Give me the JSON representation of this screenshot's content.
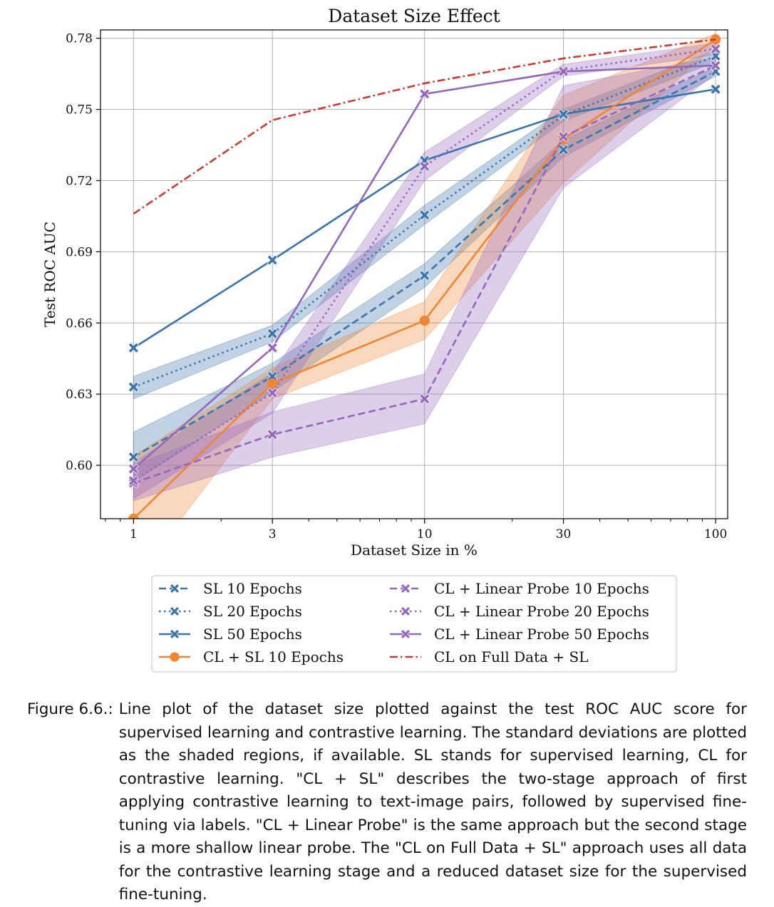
{
  "chart_data": {
    "type": "line",
    "title": "Dataset Size Effect",
    "xlabel": "Dataset Size in %",
    "ylabel": "Test ROC AUC",
    "x": [
      1,
      3,
      10,
      30,
      100
    ],
    "x_scale": "log",
    "xlim": [
      0.77,
      110
    ],
    "ylim": [
      0.5775,
      0.7835
    ],
    "xticks": [
      "1",
      "3",
      "10",
      "30",
      "100"
    ],
    "yticks": [
      "0.60",
      "0.63",
      "0.66",
      "0.69",
      "0.72",
      "0.75",
      "0.78"
    ],
    "ytick_values": [
      0.6,
      0.63,
      0.66,
      0.69,
      0.72,
      0.75,
      0.78
    ],
    "grid": true,
    "legend_position": "below plot, two columns",
    "series": [
      {
        "name": "SL 10 Epochs",
        "color": "#3a74aa",
        "linestyle": "dashed",
        "marker": "x",
        "values": [
          0.6035,
          0.6375,
          0.68,
          0.733,
          0.766
        ],
        "std_low": [
          0.593,
          0.631,
          0.675,
          0.73,
          0.764
        ],
        "std_high": [
          0.614,
          0.643,
          0.685,
          0.737,
          0.768
        ]
      },
      {
        "name": "SL 20 Epochs",
        "color": "#3a74aa",
        "linestyle": "dotted",
        "marker": "x",
        "values": [
          0.633,
          0.6555,
          0.7055,
          0.7475,
          0.7725
        ],
        "std_low": [
          0.628,
          0.652,
          0.7015,
          0.745,
          0.77
        ],
        "std_high": [
          0.6375,
          0.659,
          0.7095,
          0.75,
          0.775
        ]
      },
      {
        "name": "SL 50 Epochs",
        "color": "#3a74aa",
        "linestyle": "solid",
        "marker": "x",
        "values": [
          0.6495,
          0.6865,
          0.7285,
          0.748,
          0.7585
        ]
      },
      {
        "name": "CL + SL 10 Epochs",
        "color": "#ef8636",
        "linestyle": "solid",
        "marker": "o",
        "values": [
          0.5775,
          0.6345,
          0.661,
          0.7375,
          0.7795
        ],
        "std_low": [
          0.551,
          0.628,
          0.653,
          0.719,
          0.777
        ],
        "std_high": [
          0.604,
          0.641,
          0.669,
          0.756,
          0.782
        ]
      },
      {
        "name": "CL + Linear Probe 10 Epochs",
        "color": "#9467bd",
        "linestyle": "dashed",
        "marker": "x",
        "values": [
          0.5925,
          0.613,
          0.628,
          0.7385,
          0.7685
        ],
        "std_low": [
          0.585,
          0.6035,
          0.6175,
          0.717,
          0.765
        ],
        "std_high": [
          0.6,
          0.6225,
          0.6385,
          0.76,
          0.772
        ]
      },
      {
        "name": "CL + Linear Probe 20 Epochs",
        "color": "#9467bd",
        "linestyle": "dotted",
        "marker": "x",
        "values": [
          0.5935,
          0.6305,
          0.726,
          0.7665,
          0.7755
        ],
        "std_low": [
          0.586,
          0.622,
          0.72,
          0.764,
          0.773
        ],
        "std_high": [
          0.601,
          0.639,
          0.732,
          0.769,
          0.778
        ]
      },
      {
        "name": "CL + Linear Probe 50 Epochs",
        "color": "#9467bd",
        "linestyle": "solid",
        "marker": "x",
        "values": [
          0.5985,
          0.6495,
          0.7565,
          0.766,
          0.7685
        ]
      },
      {
        "name": "CL on Full Data + SL",
        "color": "#cc3b32",
        "linestyle": "dashdot",
        "marker": "none",
        "values": [
          0.706,
          0.7455,
          0.761,
          0.7715,
          0.7795
        ]
      }
    ]
  },
  "caption": {
    "label": "Figure 6.6.:",
    "text": "Line plot of the dataset size plotted against the test ROC AUC score for supervised learning and contrastive learning.  The standard deviations are plotted as the shaded regions, if available. SL stands for supervised learning, CL for contrastive learning. \"CL + SL\" describes the two-stage approach of first applying contrastive learning to text-image pairs, followed by supervised fine-tuning via labels. \"CL + Linear Probe\" is the same approach but the second stage is a more shallow linear probe. The \"CL on Full Data + SL\" approach uses all data for the contrastive learning stage and a reduced dataset size for the supervised fine-tuning."
  }
}
